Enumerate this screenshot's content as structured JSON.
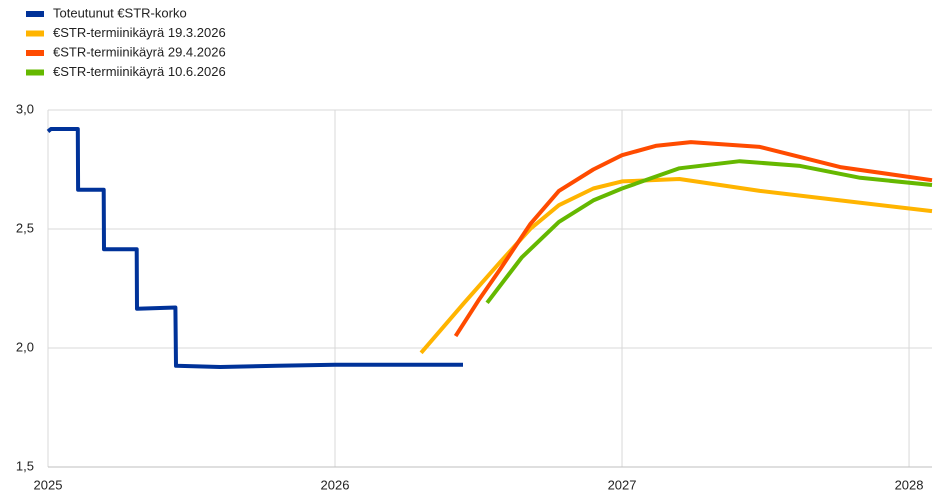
{
  "chart_data": {
    "type": "line",
    "xlim": [
      2025,
      2028.08
    ],
    "xticks": [
      2025,
      2026,
      2027,
      2028
    ],
    "ylim": [
      1.5,
      3.0
    ],
    "yticks": [
      {
        "value": 1.5,
        "label": "1,5"
      },
      {
        "value": 2.0,
        "label": "2,0"
      },
      {
        "value": 2.5,
        "label": "2,5"
      },
      {
        "value": 3.0,
        "label": "3,0"
      }
    ],
    "grid": true,
    "legend": "top-left",
    "series": [
      {
        "name": "Toteutunut €STR-korko",
        "color": "#003299",
        "x": [
          2025,
          2025.01,
          2025.104,
          2025.105,
          2025.194,
          2025.195,
          2025.309,
          2025.31,
          2025.444,
          2025.446,
          2025.6,
          2025.8,
          2026.0,
          2026.2,
          2026.446
        ],
        "values": [
          2.91,
          2.92,
          2.92,
          2.665,
          2.665,
          2.415,
          2.415,
          2.165,
          2.17,
          1.925,
          1.92,
          1.925,
          1.93,
          1.93,
          1.93
        ]
      },
      {
        "name": "€STR-termiinikäyrä 19.3.2026",
        "color": "#ffb400",
        "x": [
          2026.3,
          2026.45,
          2026.575,
          2026.68,
          2026.78,
          2026.9,
          2027.0,
          2027.2,
          2027.48,
          2027.76,
          2028.08
        ],
        "values": [
          1.98,
          2.19,
          2.36,
          2.5,
          2.6,
          2.67,
          2.7,
          2.71,
          2.66,
          2.62,
          2.575
        ]
      },
      {
        "name": "€STR-termiinikäyrä 29.4.2026",
        "color": "#ff4b00",
        "x": [
          2026.42,
          2026.5,
          2026.575,
          2026.68,
          2026.78,
          2026.9,
          2027.0,
          2027.12,
          2027.24,
          2027.48,
          2027.76,
          2028.08
        ],
        "values": [
          2.05,
          2.2,
          2.33,
          2.52,
          2.66,
          2.75,
          2.81,
          2.85,
          2.865,
          2.845,
          2.76,
          2.705
        ]
      },
      {
        "name": "€STR-termiinikäyrä 10.6.2026",
        "color": "#65b800",
        "x": [
          2026.53,
          2026.65,
          2026.78,
          2026.9,
          2027.0,
          2027.2,
          2027.41,
          2027.62,
          2027.83,
          2028.08
        ],
        "values": [
          2.19,
          2.38,
          2.53,
          2.62,
          2.67,
          2.755,
          2.785,
          2.765,
          2.715,
          2.685
        ]
      }
    ]
  }
}
